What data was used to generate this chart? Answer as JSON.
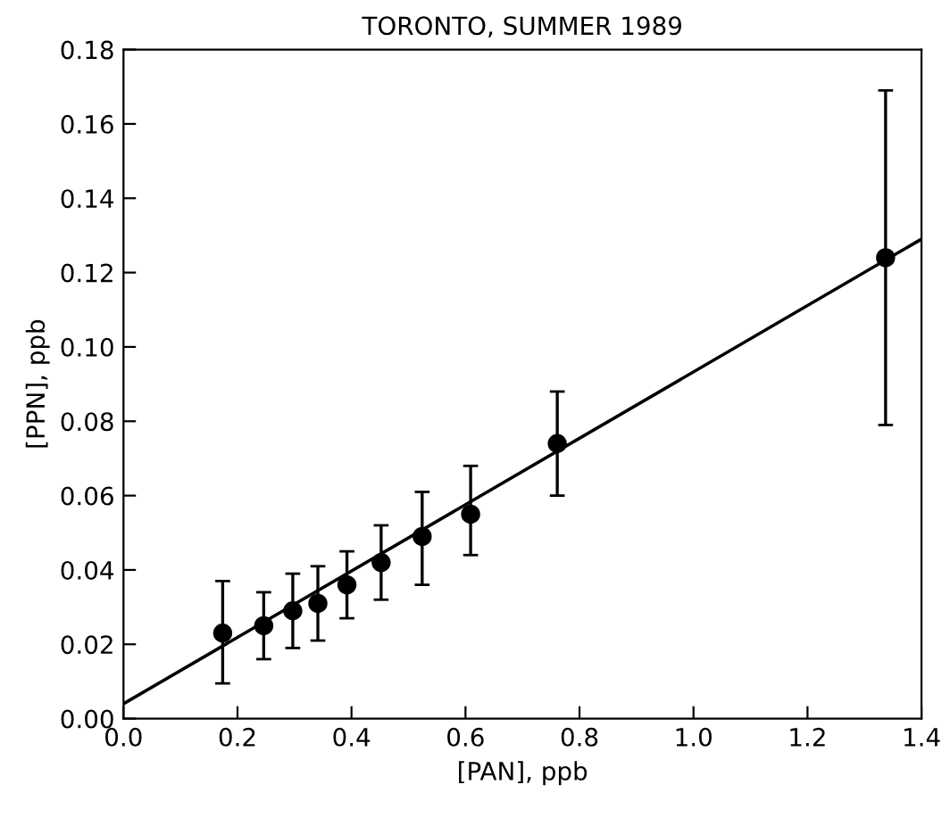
{
  "chart_data": {
    "type": "scatter",
    "title": "TORONTO, SUMMER 1989",
    "xlabel": "[PAN], ppb",
    "ylabel": "[PPN], ppb",
    "xlim": [
      0,
      1.4
    ],
    "ylim": [
      0,
      0.18
    ],
    "xticks": [
      {
        "value": 0,
        "label": "0.0"
      },
      0.2,
      0.4,
      0.6,
      0.8,
      {
        "value": 1,
        "label": "1.0"
      },
      1.2,
      1.4
    ],
    "yticks": [
      {
        "value": 0,
        "label": "0.00"
      },
      0.02,
      0.04,
      0.06,
      0.08,
      {
        "value": 0.1,
        "label": "0.10"
      },
      0.12,
      0.14,
      0.16,
      0.18
    ],
    "grid": false,
    "legend": false,
    "series": [
      {
        "color": "#000000",
        "marker": "circle",
        "x": [
          0.174,
          0.246,
          0.297,
          0.341,
          0.392,
          0.452,
          0.524,
          0.609,
          0.761,
          1.337
        ],
        "values": [
          0.023,
          0.025,
          0.029,
          0.031,
          0.036,
          0.042,
          0.049,
          0.055,
          0.074,
          0.124
        ],
        "errors": [
          [
            0.0095,
            0.037
          ],
          [
            0.016,
            0.034
          ],
          [
            0.019,
            0.039
          ],
          [
            0.021,
            0.041
          ],
          [
            0.027,
            0.045
          ],
          [
            0.032,
            0.052
          ],
          [
            0.036,
            0.061
          ],
          [
            0.044,
            0.068
          ],
          [
            0.06,
            0.088
          ],
          [
            0.079,
            0.169
          ]
        ]
      },
      {
        "type": "line",
        "color": "#000000",
        "line_style": "solid",
        "marker": "none",
        "x": [
          0,
          1.4
        ],
        "values": [
          0.004,
          0.129
        ]
      }
    ]
  }
}
